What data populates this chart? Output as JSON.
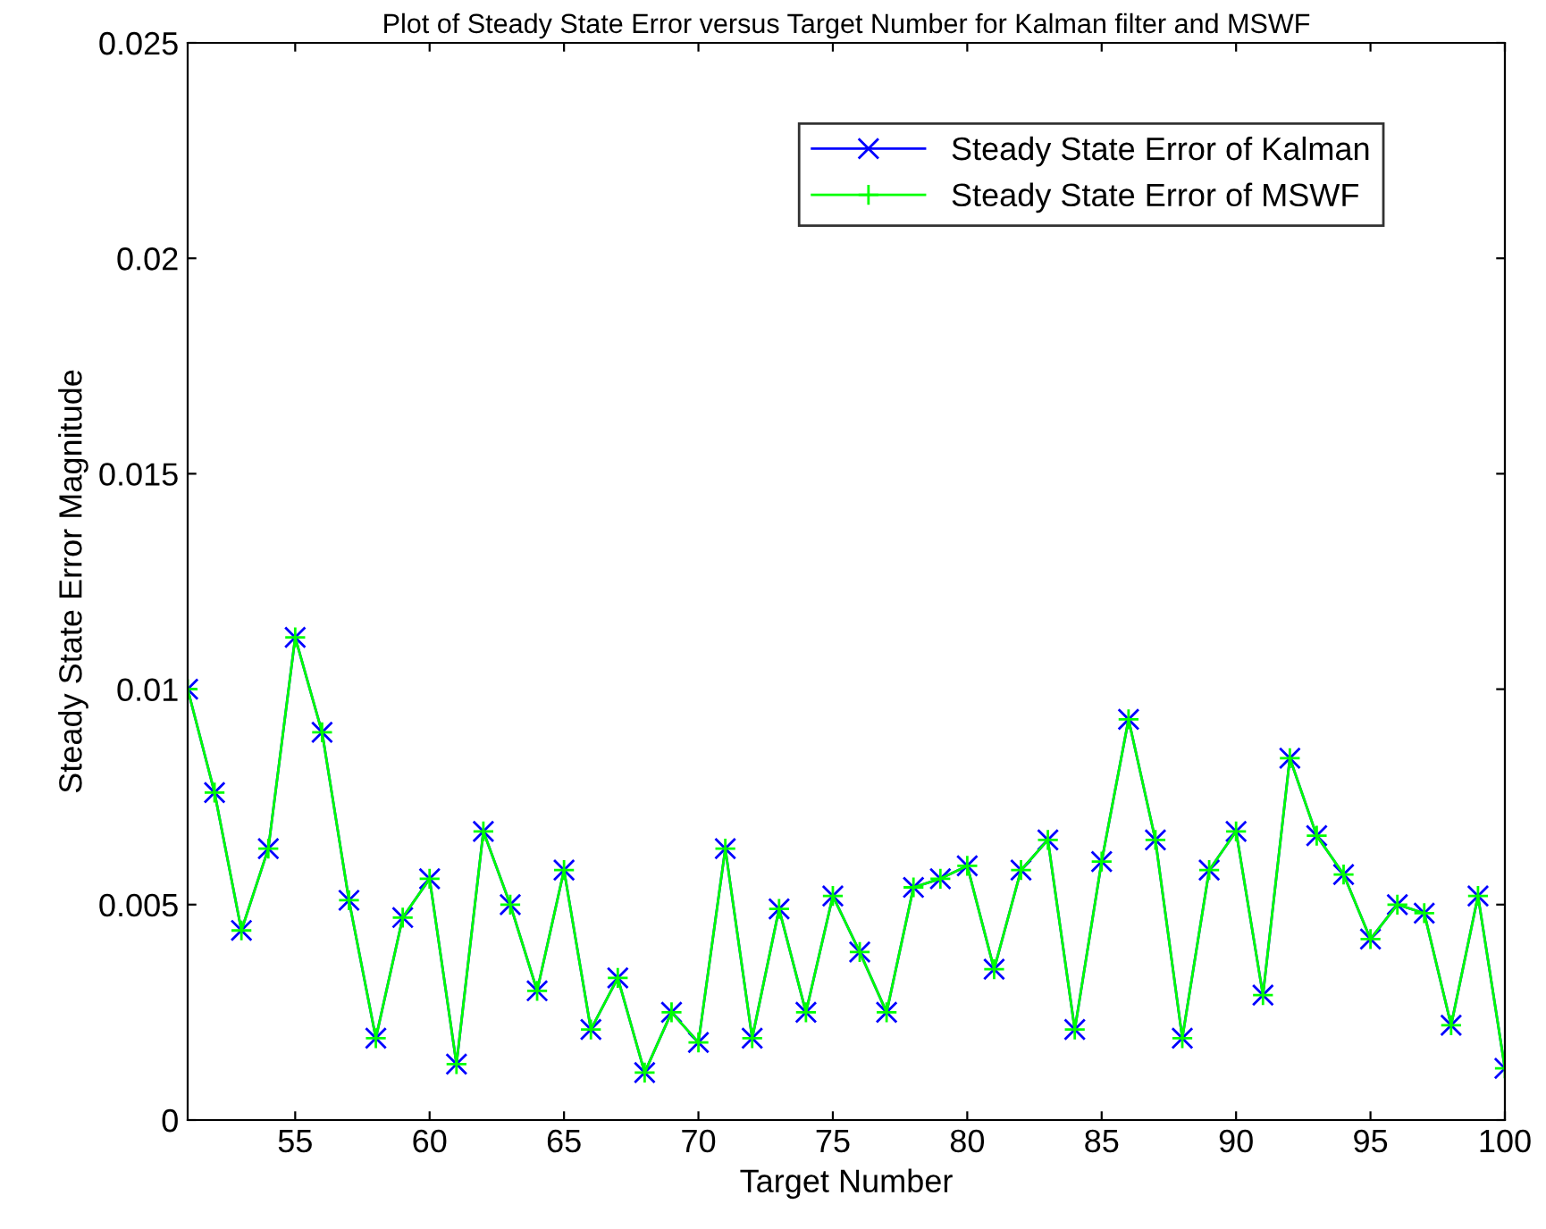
{
  "chart_data": {
    "type": "line",
    "title": "Plot of Steady State Error versus Target Number for Kalman filter and MSWF",
    "xlabel": "Target Number",
    "ylabel": "Steady State Error Magnitude",
    "x": [
      51,
      52,
      53,
      54,
      55,
      56,
      57,
      58,
      59,
      60,
      61,
      62,
      63,
      64,
      65,
      66,
      67,
      68,
      69,
      70,
      71,
      72,
      73,
      74,
      75,
      76,
      77,
      78,
      79,
      80,
      81,
      82,
      83,
      84,
      85,
      86,
      87,
      88,
      89,
      90,
      91,
      92,
      93,
      94,
      95,
      96,
      97,
      98,
      99,
      100
    ],
    "series": [
      {
        "name": "Steady State Error of Kalman",
        "color": "#0000ff",
        "marker": "cross",
        "values": [
          0.01,
          0.0076,
          0.0044,
          0.0063,
          0.0112,
          0.009,
          0.0051,
          0.0019,
          0.0047,
          0.0056,
          0.0013,
          0.0067,
          0.005,
          0.003,
          0.0058,
          0.0021,
          0.0033,
          0.0011,
          0.0025,
          0.0018,
          0.0063,
          0.0019,
          0.0049,
          0.0025,
          0.0052,
          0.0039,
          0.0025,
          0.0054,
          0.0056,
          0.0059,
          0.0035,
          0.0058,
          0.0065,
          0.0021,
          0.006,
          0.0093,
          0.0065,
          0.0019,
          0.0058,
          0.0067,
          0.0029,
          0.0084,
          0.0066,
          0.0057,
          0.0042,
          0.005,
          0.0048,
          0.0022,
          0.0052,
          0.0012
        ]
      },
      {
        "name": "Steady State Error of MSWF",
        "color": "#00ff00",
        "marker": "plus",
        "values": [
          0.01,
          0.0076,
          0.0044,
          0.0063,
          0.0112,
          0.009,
          0.0051,
          0.0019,
          0.0047,
          0.0056,
          0.0013,
          0.0067,
          0.005,
          0.003,
          0.0058,
          0.0021,
          0.0033,
          0.0011,
          0.0025,
          0.0018,
          0.0063,
          0.0019,
          0.0049,
          0.0025,
          0.0052,
          0.0039,
          0.0025,
          0.0054,
          0.0056,
          0.0059,
          0.0035,
          0.0058,
          0.0065,
          0.0021,
          0.006,
          0.0093,
          0.0065,
          0.0019,
          0.0058,
          0.0067,
          0.0029,
          0.0084,
          0.0066,
          0.0057,
          0.0042,
          0.005,
          0.0048,
          0.0022,
          0.0052,
          0.0012
        ]
      }
    ],
    "xlim": [
      51,
      100
    ],
    "xticks": [
      55,
      60,
      65,
      70,
      75,
      80,
      85,
      90,
      95,
      100
    ],
    "ylim": [
      0,
      0.025
    ],
    "yticks": [
      0,
      0.005,
      0.01,
      0.015,
      0.02,
      0.025
    ],
    "grid": false,
    "legend": "top right",
    "line_style": "solid"
  }
}
